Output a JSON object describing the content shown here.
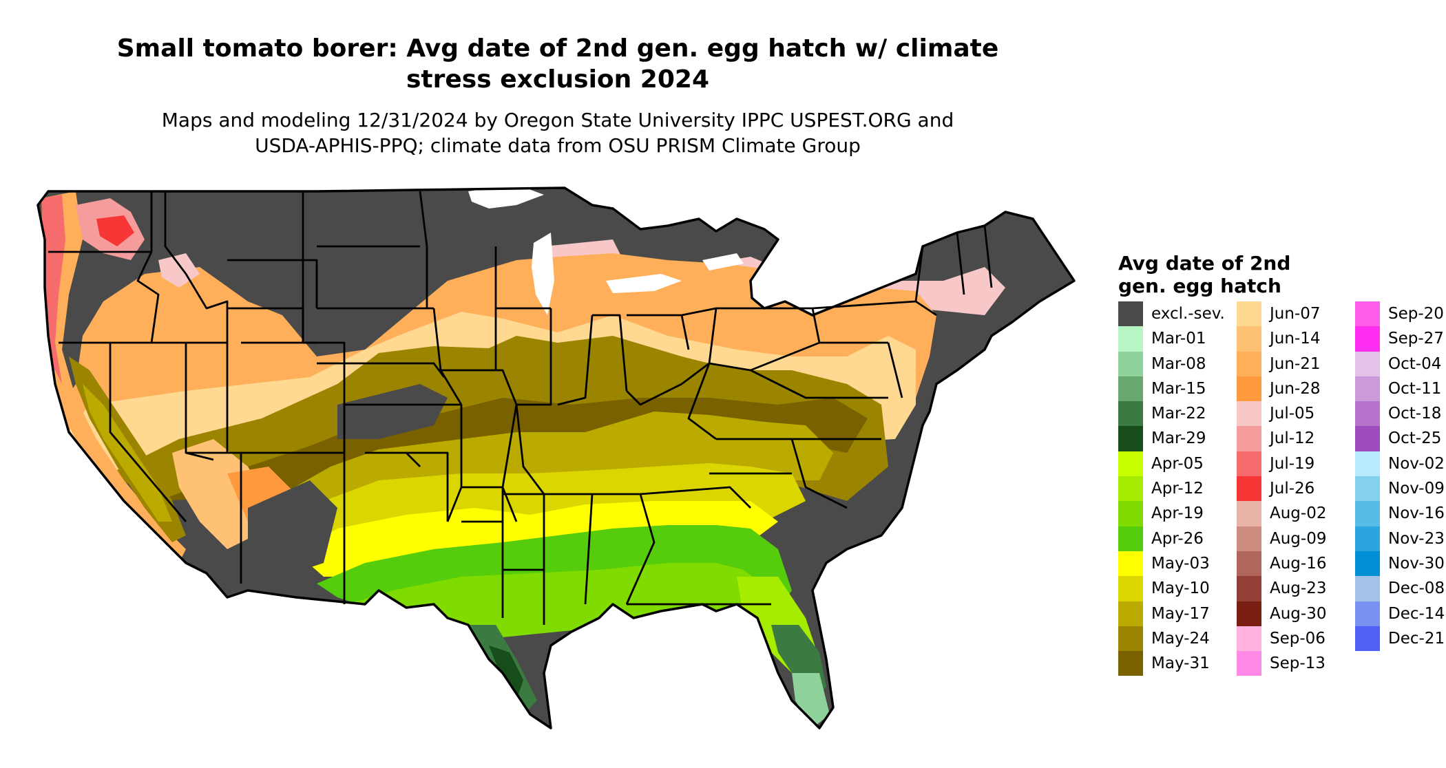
{
  "title_lines": [
    "Small tomato borer: Avg date of 2nd gen. egg hatch w/ climate",
    "stress exclusion 2024"
  ],
  "subtitle_lines": [
    "Maps and modeling 12/31/2024 by Oregon State University IPPC USPEST.ORG and",
    "USDA-APHIS-PPQ; climate data from OSU PRISM Climate Group"
  ],
  "legend": {
    "title_lines": [
      "Avg date of 2nd",
      "gen. egg hatch"
    ],
    "columns": [
      [
        {
          "label": "excl.-sev.",
          "color": "#4a4a4a"
        },
        {
          "label": "Mar-01",
          "color": "#b8f5c4"
        },
        {
          "label": "Mar-08",
          "color": "#8fd19a"
        },
        {
          "label": "Mar-15",
          "color": "#66a86d"
        },
        {
          "label": "Mar-22",
          "color": "#3b7a41"
        },
        {
          "label": "Mar-29",
          "color": "#174d1a"
        },
        {
          "label": "Apr-05",
          "color": "#c8ff00"
        },
        {
          "label": "Apr-12",
          "color": "#a6ec00"
        },
        {
          "label": "Apr-19",
          "color": "#7fdb00"
        },
        {
          "label": "Apr-26",
          "color": "#55cc0c"
        },
        {
          "label": "May-03",
          "color": "#ffff00"
        },
        {
          "label": "May-10",
          "color": "#dcd600"
        },
        {
          "label": "May-17",
          "color": "#bbaa00"
        },
        {
          "label": "May-24",
          "color": "#9a8400"
        },
        {
          "label": "May-31",
          "color": "#7a6100"
        }
      ],
      [
        {
          "label": "Jun-07",
          "color": "#ffd891"
        },
        {
          "label": "Jun-14",
          "color": "#ffc274"
        },
        {
          "label": "Jun-21",
          "color": "#ffae5a"
        },
        {
          "label": "Jun-28",
          "color": "#ff993d"
        },
        {
          "label": "Jul-05",
          "color": "#f8c8c8"
        },
        {
          "label": "Jul-12",
          "color": "#f59c9c"
        },
        {
          "label": "Jul-19",
          "color": "#f66b6b"
        },
        {
          "label": "Jul-26",
          "color": "#f73636"
        },
        {
          "label": "Aug-02",
          "color": "#e8b4a8"
        },
        {
          "label": "Aug-09",
          "color": "#cc8c80"
        },
        {
          "label": "Aug-16",
          "color": "#b0665b"
        },
        {
          "label": "Aug-23",
          "color": "#943f36"
        },
        {
          "label": "Aug-30",
          "color": "#7a1e12"
        },
        {
          "label": "Sep-06",
          "color": "#ffb3de"
        },
        {
          "label": "Sep-13",
          "color": "#ff8ae6"
        }
      ],
      [
        {
          "label": "Sep-20",
          "color": "#ff5ce8"
        },
        {
          "label": "Sep-27",
          "color": "#ff2ef0"
        },
        {
          "label": "Oct-04",
          "color": "#e3c2e8"
        },
        {
          "label": "Oct-11",
          "color": "#cc99d9"
        },
        {
          "label": "Oct-18",
          "color": "#b573cc"
        },
        {
          "label": "Oct-25",
          "color": "#9e4dbf"
        },
        {
          "label": "Nov-02",
          "color": "#b8eaff"
        },
        {
          "label": "Nov-09",
          "color": "#85d2f0"
        },
        {
          "label": "Nov-16",
          "color": "#57bde6"
        },
        {
          "label": "Nov-23",
          "color": "#2aa5dd"
        },
        {
          "label": "Nov-30",
          "color": "#008fd4"
        },
        {
          "label": "Dec-08",
          "color": "#a3c2e8"
        },
        {
          "label": "Dec-14",
          "color": "#7a92ef"
        },
        {
          "label": "Dec-21",
          "color": "#5060f5"
        }
      ]
    ]
  }
}
